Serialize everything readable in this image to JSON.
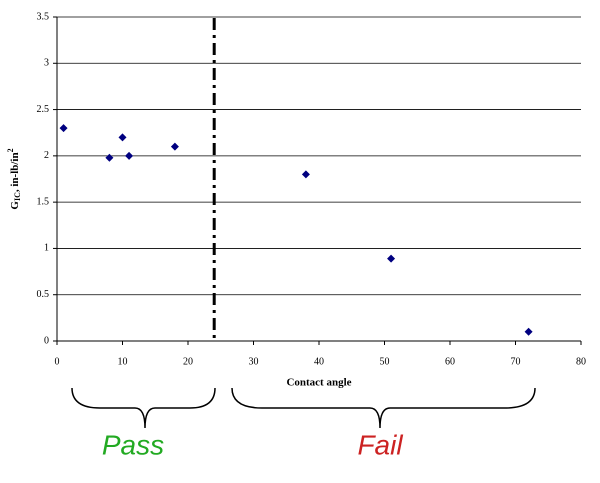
{
  "chart_data": {
    "type": "scatter",
    "x": [
      1,
      8,
      10,
      11,
      18,
      38,
      51,
      72
    ],
    "values": [
      2.3,
      1.98,
      2.2,
      2.0,
      2.1,
      1.8,
      0.89,
      0.1
    ],
    "color": "#000080",
    "xlim": [
      0,
      80
    ],
    "xticks": [
      0,
      10,
      20,
      30,
      40,
      50,
      60,
      70,
      80
    ],
    "ylim": [
      0,
      3.5
    ],
    "yticks": [
      0,
      0.5,
      1,
      1.5,
      2,
      2.5,
      3,
      3.5
    ],
    "grid": true,
    "xlabel": "Contact angle",
    "ylabel": {
      "base": "G",
      "sub": "IC",
      "text": ", in-lb/in",
      "sup": "2"
    },
    "divider_x": 24,
    "annotations": [
      {
        "text": "Pass",
        "color": "#22aa22"
      },
      {
        "text": "Fail",
        "color": "#cc2222"
      }
    ]
  }
}
